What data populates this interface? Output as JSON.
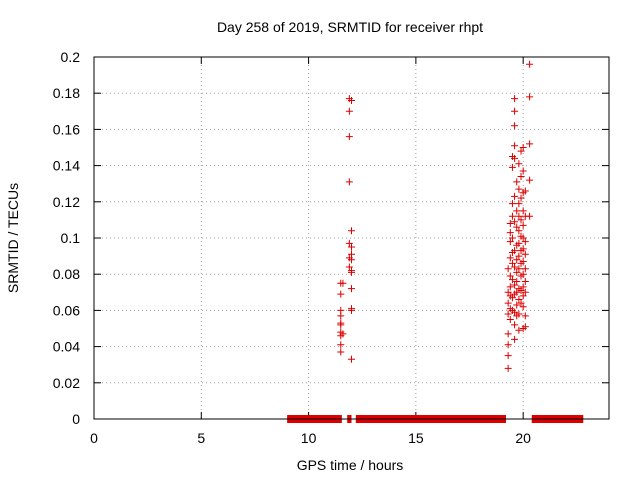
{
  "chart_data": {
    "type": "scatter",
    "title": "Day 258 of 2019, SRMTID for receiver rhpt",
    "xlabel": "GPS time / hours",
    "ylabel": "SRMTID / TECUs",
    "xlim": [
      0,
      24
    ],
    "ylim": [
      0,
      0.2
    ],
    "xticks": [
      "0",
      "5",
      "10",
      "15",
      "20"
    ],
    "yticks": [
      "0",
      "0.02",
      "0.04",
      "0.06",
      "0.08",
      "0.1",
      "0.12",
      "0.14",
      "0.16",
      "0.18",
      "0.2"
    ],
    "grid": true,
    "marker": "+",
    "color": "#dd0000",
    "zero_segments": [
      [
        9.0,
        11.55
      ],
      [
        11.8,
        12.0
      ],
      [
        12.2,
        19.2
      ],
      [
        20.4,
        22.8
      ]
    ],
    "points": [
      [
        11.5,
        0.075
      ],
      [
        11.5,
        0.069
      ],
      [
        11.5,
        0.06
      ],
      [
        11.5,
        0.057
      ],
      [
        11.5,
        0.053
      ],
      [
        11.5,
        0.052
      ],
      [
        11.5,
        0.048
      ],
      [
        11.5,
        0.046
      ],
      [
        11.5,
        0.041
      ],
      [
        11.5,
        0.037
      ],
      [
        11.6,
        0.075
      ],
      [
        11.6,
        0.047
      ],
      [
        11.9,
        0.177
      ],
      [
        11.9,
        0.17
      ],
      [
        11.9,
        0.156
      ],
      [
        11.9,
        0.131
      ],
      [
        11.9,
        0.097
      ],
      [
        11.9,
        0.089
      ],
      [
        11.9,
        0.084
      ],
      [
        12.0,
        0.176
      ],
      [
        12.0,
        0.104
      ],
      [
        12.0,
        0.095
      ],
      [
        12.0,
        0.091
      ],
      [
        12.0,
        0.088
      ],
      [
        12.0,
        0.082
      ],
      [
        12.0,
        0.081
      ],
      [
        12.0,
        0.072
      ],
      [
        12.0,
        0.061
      ],
      [
        12.0,
        0.06
      ],
      [
        12.0,
        0.033
      ],
      [
        19.3,
        0.083
      ],
      [
        19.3,
        0.07
      ],
      [
        19.3,
        0.064
      ],
      [
        19.3,
        0.058
      ],
      [
        19.3,
        0.047
      ],
      [
        19.3,
        0.041
      ],
      [
        19.3,
        0.035
      ],
      [
        19.3,
        0.028
      ],
      [
        19.4,
        0.108
      ],
      [
        19.4,
        0.103
      ],
      [
        19.4,
        0.098
      ],
      [
        19.4,
        0.089
      ],
      [
        19.4,
        0.079
      ],
      [
        19.4,
        0.073
      ],
      [
        19.4,
        0.068
      ],
      [
        19.4,
        0.061
      ],
      [
        19.4,
        0.055
      ],
      [
        19.5,
        0.145
      ],
      [
        19.5,
        0.139
      ],
      [
        19.5,
        0.119
      ],
      [
        19.5,
        0.112
      ],
      [
        19.5,
        0.1
      ],
      [
        19.5,
        0.092
      ],
      [
        19.5,
        0.086
      ],
      [
        19.5,
        0.077
      ],
      [
        19.5,
        0.067
      ],
      [
        19.5,
        0.06
      ],
      [
        19.6,
        0.177
      ],
      [
        19.6,
        0.17
      ],
      [
        19.6,
        0.162
      ],
      [
        19.6,
        0.151
      ],
      [
        19.6,
        0.144
      ],
      [
        19.6,
        0.123
      ],
      [
        19.6,
        0.109
      ],
      [
        19.6,
        0.093
      ],
      [
        19.6,
        0.084
      ],
      [
        19.6,
        0.074
      ],
      [
        19.6,
        0.069
      ],
      [
        19.6,
        0.059
      ],
      [
        19.6,
        0.052
      ],
      [
        19.6,
        0.044
      ],
      [
        19.7,
        0.131
      ],
      [
        19.7,
        0.115
      ],
      [
        19.7,
        0.106
      ],
      [
        19.7,
        0.096
      ],
      [
        19.7,
        0.088
      ],
      [
        19.7,
        0.081
      ],
      [
        19.7,
        0.076
      ],
      [
        19.7,
        0.07
      ],
      [
        19.7,
        0.063
      ],
      [
        19.7,
        0.057
      ],
      [
        19.8,
        0.141
      ],
      [
        19.8,
        0.127
      ],
      [
        19.8,
        0.119
      ],
      [
        19.8,
        0.112
      ],
      [
        19.8,
        0.104
      ],
      [
        19.8,
        0.097
      ],
      [
        19.8,
        0.09
      ],
      [
        19.8,
        0.083
      ],
      [
        19.8,
        0.072
      ],
      [
        19.8,
        0.066
      ],
      [
        19.8,
        0.058
      ],
      [
        19.8,
        0.049
      ],
      [
        19.9,
        0.148
      ],
      [
        19.9,
        0.134
      ],
      [
        19.9,
        0.122
      ],
      [
        19.9,
        0.11
      ],
      [
        19.9,
        0.101
      ],
      [
        19.9,
        0.093
      ],
      [
        19.9,
        0.086
      ],
      [
        19.9,
        0.079
      ],
      [
        19.9,
        0.071
      ],
      [
        19.9,
        0.064
      ],
      [
        20.0,
        0.15
      ],
      [
        20.0,
        0.137
      ],
      [
        20.0,
        0.125
      ],
      [
        20.0,
        0.115
      ],
      [
        20.0,
        0.107
      ],
      [
        20.0,
        0.1
      ],
      [
        20.0,
        0.094
      ],
      [
        20.0,
        0.087
      ],
      [
        20.0,
        0.08
      ],
      [
        20.0,
        0.073
      ],
      [
        20.0,
        0.068
      ],
      [
        20.0,
        0.062
      ],
      [
        20.0,
        0.05
      ],
      [
        20.1,
        0.126
      ],
      [
        20.1,
        0.112
      ],
      [
        20.1,
        0.098
      ],
      [
        20.1,
        0.091
      ],
      [
        20.1,
        0.083
      ],
      [
        20.1,
        0.076
      ],
      [
        20.1,
        0.07
      ],
      [
        20.1,
        0.057
      ],
      [
        20.1,
        0.051
      ],
      [
        20.3,
        0.196
      ],
      [
        20.3,
        0.178
      ],
      [
        20.3,
        0.152
      ],
      [
        20.3,
        0.132
      ],
      [
        20.3,
        0.112
      ]
    ]
  }
}
